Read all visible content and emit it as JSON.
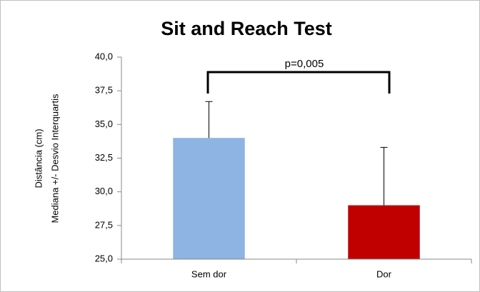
{
  "chart_data": {
    "type": "bar",
    "title": "Sit and Reach Test",
    "ylabel": [
      "Distância (cm)",
      "Mediana +/- Desvio Interquartis"
    ],
    "categories": [
      "Sem dor",
      "Dor"
    ],
    "values": [
      34,
      29
    ],
    "errors": [
      2.7,
      4.3
    ],
    "colors": [
      "#8db4e2",
      "#c00000"
    ],
    "annotation": "p=0,005",
    "ylim": [
      25,
      40
    ],
    "yticks": [
      {
        "value": 25,
        "label": "25,0"
      },
      {
        "value": 27.5,
        "label": "27,5"
      },
      {
        "value": 30,
        "label": "30,0"
      },
      {
        "value": 32.5,
        "label": "32,5"
      },
      {
        "value": 35,
        "label": "35,0"
      },
      {
        "value": 37.5,
        "label": "37,5"
      },
      {
        "value": 40,
        "label": "40,0"
      }
    ],
    "grid": false
  }
}
